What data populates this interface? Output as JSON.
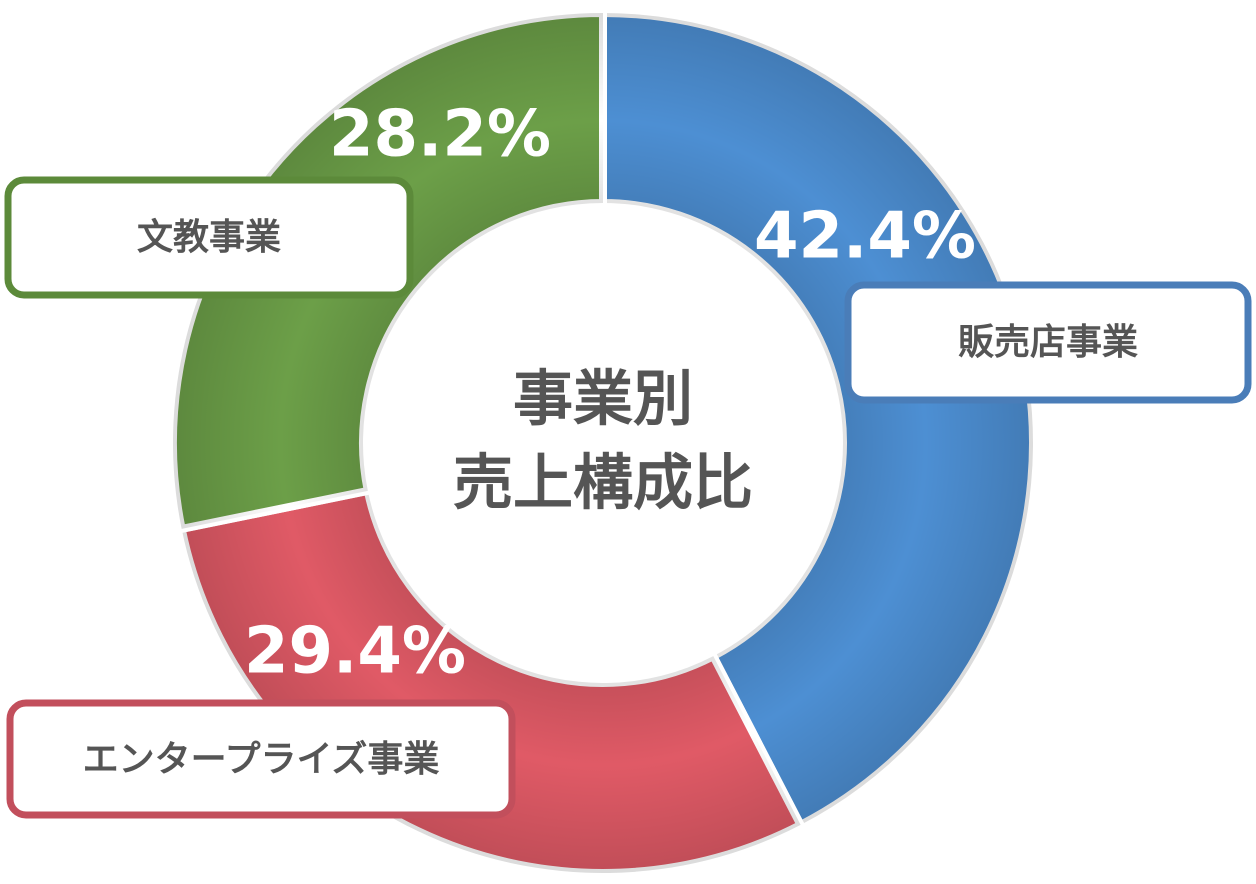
{
  "chart_data": {
    "type": "donut",
    "title": [
      "事業別",
      "売上構成比"
    ],
    "categories": [
      "販売店事業",
      "エンタープライズ事業",
      "文教事業"
    ],
    "values": [
      42.4,
      29.4,
      28.2
    ],
    "value_labels": [
      "42.4%",
      "29.4%",
      "28.2%"
    ],
    "colors": [
      "#4d8fd3",
      "#e05a66",
      "#6c9f48"
    ]
  }
}
